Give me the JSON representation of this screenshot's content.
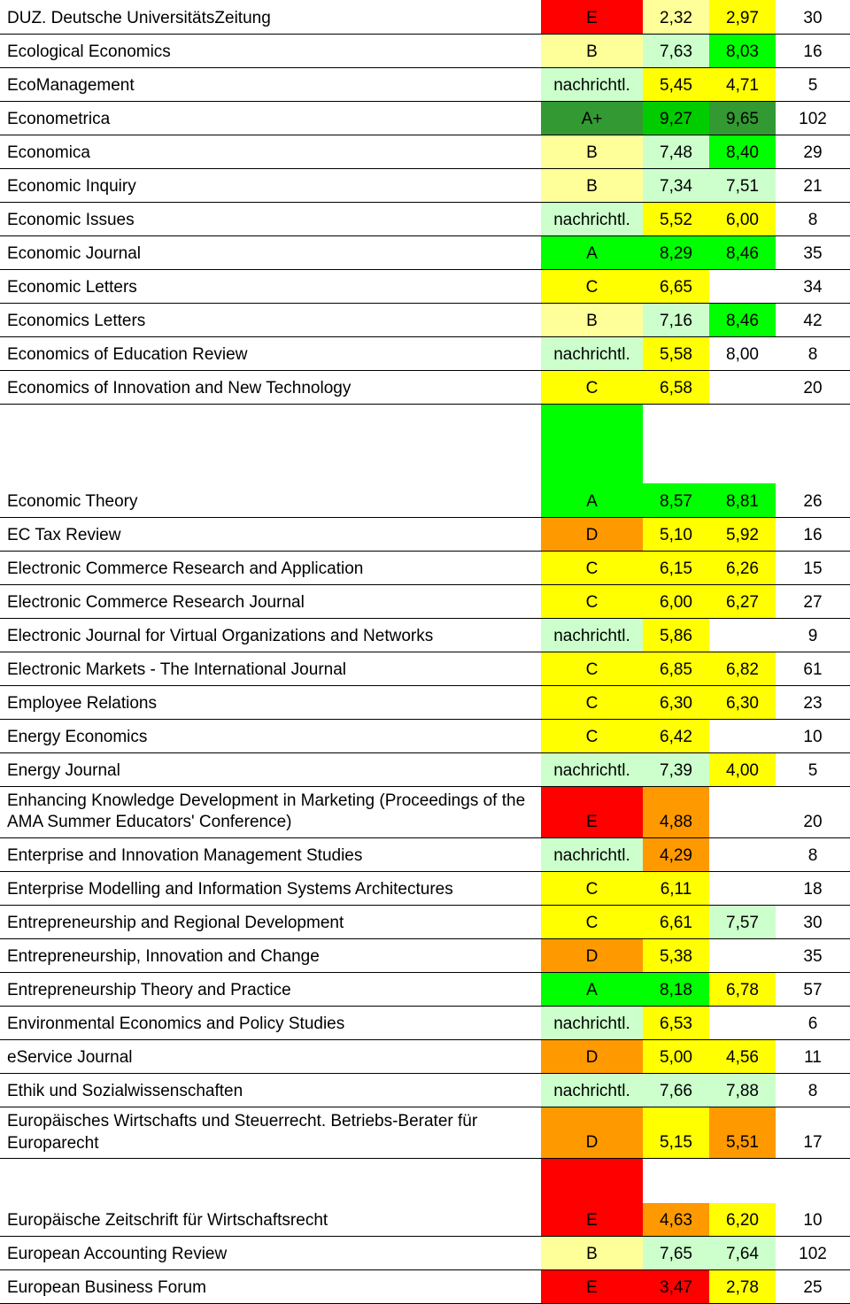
{
  "colors": {
    "red": "#ff0000",
    "yellow_pale": "#ffff99",
    "yellow": "#ffff00",
    "mint": "#ccffcc",
    "green_dark": "#339933",
    "green": "#00cc00",
    "lime": "#00ff00",
    "orange": "#ff9900",
    "white": "#ffffff"
  },
  "rows": [
    {
      "name": "DUZ. Deutsche UniversitätsZeitung",
      "rating": "E",
      "rBg": "#ff0000",
      "v1": "2,32",
      "v1Bg": "#ffff99",
      "v2": "2,97",
      "v2Bg": "#ffff00",
      "v3": "30"
    },
    {
      "name": "Ecological Economics",
      "rating": "B",
      "rBg": "#ffff99",
      "v1": "7,63",
      "v1Bg": "#ccffcc",
      "v2": "8,03",
      "v2Bg": "#00ff00",
      "v3": "16"
    },
    {
      "name": "EcoManagement",
      "rating": "nachrichtl.",
      "rBg": "#ccffcc",
      "v1": "5,45",
      "v1Bg": "#ffff00",
      "v2": "4,71",
      "v2Bg": "#ffff00",
      "v3": "5"
    },
    {
      "name": "Econometrica",
      "rating": "A+",
      "rBg": "#339933",
      "v1": "9,27",
      "v1Bg": "#00cc00",
      "v2": "9,65",
      "v2Bg": "#339933",
      "v3": "102"
    },
    {
      "name": "Economica",
      "rating": "B",
      "rBg": "#ffff99",
      "v1": "7,48",
      "v1Bg": "#ccffcc",
      "v2": "8,40",
      "v2Bg": "#00ff00",
      "v3": "29"
    },
    {
      "name": "Economic Inquiry",
      "rating": "B",
      "rBg": "#ffff99",
      "v1": "7,34",
      "v1Bg": "#ccffcc",
      "v2": "7,51",
      "v2Bg": "#ccffcc",
      "v3": "21"
    },
    {
      "name": "Economic Issues",
      "rating": "nachrichtl.",
      "rBg": "#ccffcc",
      "v1": "5,52",
      "v1Bg": "#ffff00",
      "v2": "6,00",
      "v2Bg": "#ffff00",
      "v3": "8"
    },
    {
      "name": "Economic Journal",
      "rating": "A",
      "rBg": "#00ff00",
      "v1": "8,29",
      "v1Bg": "#00ff00",
      "v2": "8,46",
      "v2Bg": "#00ff00",
      "v3": "35"
    },
    {
      "name": "Economic Letters",
      "rating": "C",
      "rBg": "#ffff00",
      "v1": "6,65",
      "v1Bg": "#ffff00",
      "v2": "",
      "v2Bg": "#ffffff",
      "v3": "34"
    },
    {
      "name": "Economics Letters",
      "rating": "B",
      "rBg": "#ffff99",
      "v1": "7,16",
      "v1Bg": "#ccffcc",
      "v2": "8,46",
      "v2Bg": "#00ff00",
      "v3": "42"
    },
    {
      "name": "Economics of Education Review",
      "rating": "nachrichtl.",
      "rBg": "#ccffcc",
      "v1": "5,58",
      "v1Bg": "#ffff00",
      "v2": "8,00",
      "v2Bg": "#ffffff",
      "v3": "8"
    },
    {
      "name": "Economics of Innovation and New Technology",
      "rating": "C",
      "rBg": "#ffff00",
      "v1": "6,58",
      "v1Bg": "#ffff00",
      "v2": "",
      "v2Bg": "#ffffff",
      "v3": "20"
    },
    {
      "spacer": true,
      "r2Bg": "#00ff00"
    },
    {
      "name": "Economic Theory",
      "rating": "A",
      "rBg": "#00ff00",
      "v1": "8,57",
      "v1Bg": "#00ff00",
      "v2": "8,81",
      "v2Bg": "#00ff00",
      "v3": "26"
    },
    {
      "name": "EC Tax Review",
      "rating": "D",
      "rBg": "#ff9900",
      "v1": "5,10",
      "v1Bg": "#ffff00",
      "v2": "5,92",
      "v2Bg": "#ffff00",
      "v3": "16"
    },
    {
      "name": "Electronic Commerce Research and Application",
      "rating": "C",
      "rBg": "#ffff00",
      "v1": "6,15",
      "v1Bg": "#ffff00",
      "v2": "6,26",
      "v2Bg": "#ffff00",
      "v3": "15"
    },
    {
      "name": "Electronic Commerce Research Journal",
      "rating": "C",
      "rBg": "#ffff00",
      "v1": "6,00",
      "v1Bg": "#ffff00",
      "v2": "6,27",
      "v2Bg": "#ffff00",
      "v3": "27"
    },
    {
      "name": "Electronic Journal for Virtual Organizations and Networks",
      "rating": "nachrichtl.",
      "rBg": "#ccffcc",
      "v1": "5,86",
      "v1Bg": "#ffff00",
      "v2": "",
      "v2Bg": "#ffffff",
      "v3": "9"
    },
    {
      "name": "Electronic Markets - The International Journal",
      "rating": "C",
      "rBg": "#ffff00",
      "v1": "6,85",
      "v1Bg": "#ffff00",
      "v2": "6,82",
      "v2Bg": "#ffff00",
      "v3": "61"
    },
    {
      "name": "Employee Relations",
      "rating": "C",
      "rBg": "#ffff00",
      "v1": "6,30",
      "v1Bg": "#ffff00",
      "v2": "6,30",
      "v2Bg": "#ffff00",
      "v3": "23"
    },
    {
      "name": "Energy Economics",
      "rating": "C",
      "rBg": "#ffff00",
      "v1": "6,42",
      "v1Bg": "#ffff00",
      "v2": "",
      "v2Bg": "#ffffff",
      "v3": "10"
    },
    {
      "name": "Energy Journal",
      "rating": "nachrichtl.",
      "rBg": "#ccffcc",
      "v1": "7,39",
      "v1Bg": "#ccffcc",
      "v2": "4,00",
      "v2Bg": "#ffff00",
      "v3": "5"
    },
    {
      "name": "Enhancing Knowledge Development in Marketing (Proceedings of the AMA Summer Educators' Conference)",
      "rating": "E",
      "rBg": "#ff0000",
      "v1": "4,88",
      "v1Bg": "#ff9900",
      "v2": "",
      "v2Bg": "#ffffff",
      "v3": "20",
      "multiline": true
    },
    {
      "name": "Enterprise and Innovation Management Studies",
      "rating": "nachrichtl.",
      "rBg": "#ccffcc",
      "v1": "4,29",
      "v1Bg": "#ff9900",
      "v2": "",
      "v2Bg": "#ffffff",
      "v3": "8"
    },
    {
      "name": "Enterprise Modelling and Information Systems Architectures",
      "rating": "C",
      "rBg": "#ffff00",
      "v1": "6,11",
      "v1Bg": "#ffff00",
      "v2": "",
      "v2Bg": "#ffffff",
      "v3": "18"
    },
    {
      "name": "Entrepreneurship and Regional Development",
      "rating": "C",
      "rBg": "#ffff00",
      "v1": "6,61",
      "v1Bg": "#ffff00",
      "v2": "7,57",
      "v2Bg": "#ccffcc",
      "v3": "30"
    },
    {
      "name": "Entrepreneurship, Innovation and Change",
      "rating": "D",
      "rBg": "#ff9900",
      "v1": "5,38",
      "v1Bg": "#ffff00",
      "v2": "",
      "v2Bg": "#ffffff",
      "v3": "35"
    },
    {
      "name": "Entrepreneurship Theory and Practice",
      "rating": "A",
      "rBg": "#00ff00",
      "v1": "8,18",
      "v1Bg": "#00ff00",
      "v2": "6,78",
      "v2Bg": "#ffff00",
      "v3": "57"
    },
    {
      "name": "Environmental Economics and Policy Studies",
      "rating": "nachrichtl.",
      "rBg": "#ccffcc",
      "v1": "6,53",
      "v1Bg": "#ffff00",
      "v2": "",
      "v2Bg": "#ffffff",
      "v3": "6"
    },
    {
      "name": "eService Journal",
      "rating": "D",
      "rBg": "#ff9900",
      "v1": "5,00",
      "v1Bg": "#ffff00",
      "v2": "4,56",
      "v2Bg": "#ffff00",
      "v3": "11"
    },
    {
      "name": "Ethik und Sozialwissenschaften",
      "rating": "nachrichtl.",
      "rBg": "#ccffcc",
      "v1": "7,66",
      "v1Bg": "#ccffcc",
      "v2": "7,88",
      "v2Bg": "#ccffcc",
      "v3": "8"
    },
    {
      "name": "Europäisches Wirtschafts und Steuerrecht. Betriebs-Berater für Europarecht",
      "rating": "D",
      "rBg": "#ff9900",
      "v1": "5,15",
      "v1Bg": "#ffff00",
      "v2": "5,51",
      "v2Bg": "#ff9900",
      "v3": "17",
      "multiline": true
    },
    {
      "spacerSmall": true,
      "r2Bg": "#ff0000"
    },
    {
      "name": "Europäische Zeitschrift für Wirtschaftsrecht",
      "rating": "E",
      "rBg": "#ff0000",
      "v1": "4,63",
      "v1Bg": "#ff9900",
      "v2": "6,20",
      "v2Bg": "#ffff00",
      "v3": "10"
    },
    {
      "name": "European Accounting Review",
      "rating": "B",
      "rBg": "#ffff99",
      "v1": "7,65",
      "v1Bg": "#ccffcc",
      "v2": "7,64",
      "v2Bg": "#ccffcc",
      "v3": "102"
    },
    {
      "name": "European Business Forum",
      "rating": "E",
      "rBg": "#ff0000",
      "v1": "3,47",
      "v1Bg": "#ff0000",
      "v2": "2,78",
      "v2Bg": "#ffff00",
      "v3": "25"
    }
  ]
}
